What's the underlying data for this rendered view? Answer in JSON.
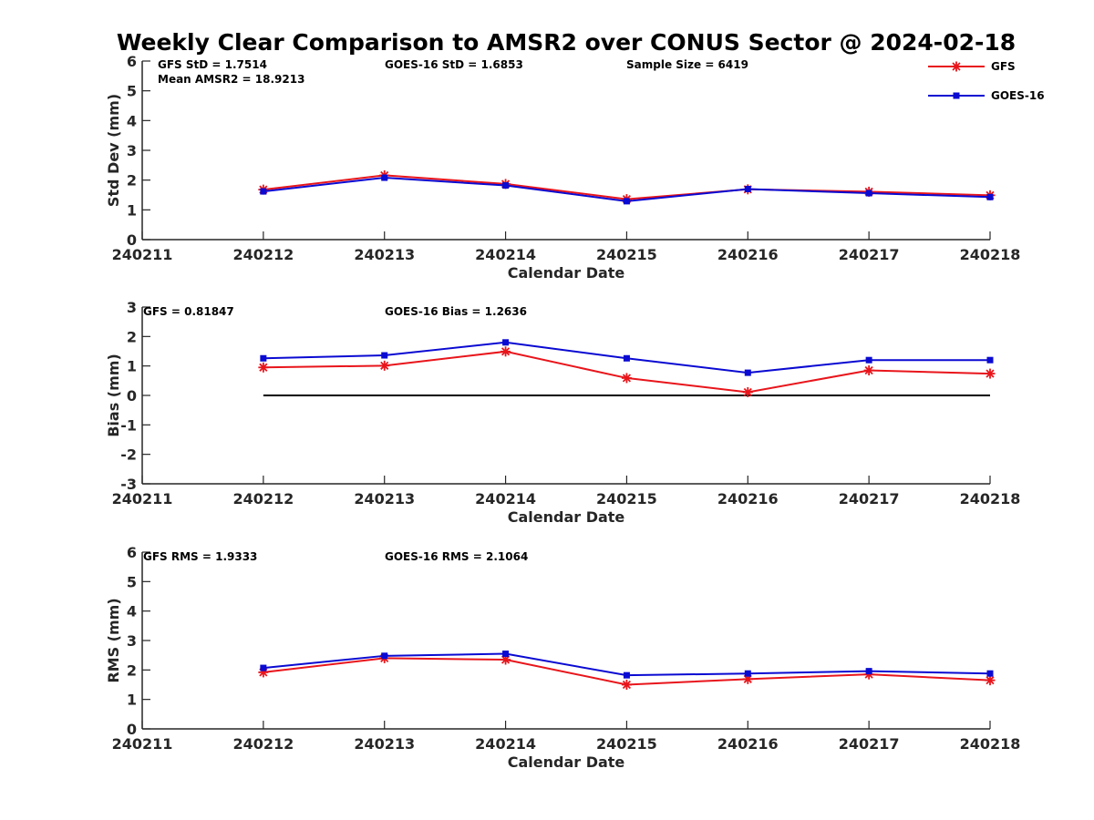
{
  "title": "Weekly Clear Comparison to AMSR2 over CONUS Sector @ 2024-02-18",
  "colors": {
    "GFS": "#e8151b",
    "GOES-16": "#0a0ad2",
    "axis": "#262626",
    "zero_line": "#000000"
  },
  "legend": {
    "placement": "top-right",
    "items": [
      {
        "label": "GFS",
        "marker": "asterisk",
        "color": "#e8151b"
      },
      {
        "label": "GOES-16",
        "marker": "square",
        "color": "#0a0ad2"
      }
    ]
  },
  "chart_data": [
    {
      "type": "line",
      "ylabel": "Std Dev (mm)",
      "xlabel": "Calendar Date",
      "ylim": [
        0,
        6
      ],
      "yticks": [
        "0",
        "1",
        "2",
        "3",
        "4",
        "5",
        "6"
      ],
      "xlim": [
        "240211",
        "240218"
      ],
      "xticks": [
        "240211",
        "240212",
        "240213",
        "240214",
        "240215",
        "240216",
        "240217",
        "240218"
      ],
      "x": [
        "240212",
        "240213",
        "240214",
        "240215",
        "240216",
        "240217",
        "240218"
      ],
      "series": [
        {
          "name": "GFS",
          "values": [
            1.68,
            2.16,
            1.87,
            1.36,
            1.69,
            1.61,
            1.49
          ]
        },
        {
          "name": "GOES-16",
          "values": [
            1.62,
            2.08,
            1.82,
            1.29,
            1.7,
            1.56,
            1.43
          ]
        }
      ],
      "annotations": [
        "GFS StD = 1.7514",
        "Mean AMSR2 = 18.9213",
        "GOES-16 StD = 1.6853",
        "Sample Size = 6419"
      ]
    },
    {
      "type": "line",
      "ylabel": "Bias (mm)",
      "xlabel": "Calendar Date",
      "ylim": [
        -3,
        3
      ],
      "yticks": [
        "-3",
        "-2",
        "-1",
        "0",
        "1",
        "2",
        "3"
      ],
      "xlim": [
        "240211",
        "240218"
      ],
      "xticks": [
        "240211",
        "240212",
        "240213",
        "240214",
        "240215",
        "240216",
        "240217",
        "240218"
      ],
      "x": [
        "240212",
        "240213",
        "240214",
        "240215",
        "240216",
        "240217",
        "240218"
      ],
      "reference_line": 0,
      "series": [
        {
          "name": "GFS",
          "values": [
            0.95,
            1.01,
            1.49,
            0.59,
            0.11,
            0.85,
            0.74
          ]
        },
        {
          "name": "GOES-16",
          "values": [
            1.26,
            1.36,
            1.8,
            1.26,
            0.77,
            1.2,
            1.2
          ]
        }
      ],
      "annotations": [
        "GFS = 0.81847",
        "GOES-16 Bias  = 1.2636"
      ]
    },
    {
      "type": "line",
      "ylabel": "RMS (mm)",
      "xlabel": "Calendar Date",
      "ylim": [
        0,
        6
      ],
      "yticks": [
        "0",
        "1",
        "2",
        "3",
        "4",
        "5",
        "6"
      ],
      "xlim": [
        "240211",
        "240218"
      ],
      "xticks": [
        "240211",
        "240212",
        "240213",
        "240214",
        "240215",
        "240216",
        "240217",
        "240218"
      ],
      "x": [
        "240212",
        "240213",
        "240214",
        "240215",
        "240216",
        "240217",
        "240218"
      ],
      "series": [
        {
          "name": "GFS",
          "values": [
            1.92,
            2.4,
            2.35,
            1.5,
            1.69,
            1.85,
            1.65
          ]
        },
        {
          "name": "GOES-16",
          "values": [
            2.07,
            2.48,
            2.55,
            1.82,
            1.88,
            1.96,
            1.88
          ]
        }
      ],
      "annotations": [
        "GFS RMS = 1.9333",
        "GOES-16 RMS = 2.1064"
      ]
    }
  ]
}
